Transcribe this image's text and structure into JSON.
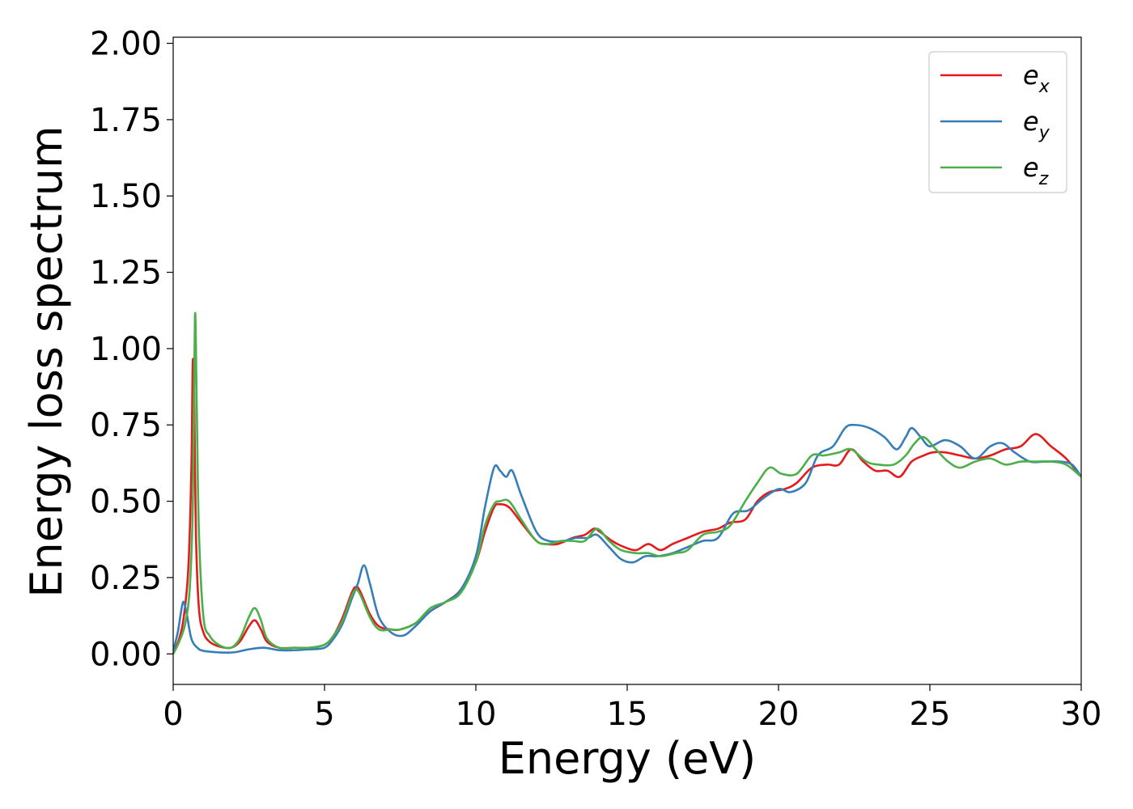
{
  "chart_data": {
    "type": "line",
    "title": "",
    "xlabel": "Energy (eV)",
    "ylabel": "Energy loss spectrum",
    "xlim": [
      0,
      30
    ],
    "ylim": [
      -0.1,
      2.02
    ],
    "xticks": [
      0,
      5,
      10,
      15,
      20,
      25,
      30
    ],
    "xtick_labels": [
      "0",
      "5",
      "10",
      "15",
      "20",
      "25",
      "30"
    ],
    "yticks": [
      0,
      0.25,
      0.5,
      0.75,
      1.0,
      1.25,
      1.5,
      1.75,
      2.0
    ],
    "ytick_labels": [
      "0.00",
      "0.25",
      "0.50",
      "0.75",
      "1.00",
      "1.25",
      "1.50",
      "1.75",
      "2.00"
    ],
    "grid": false,
    "legend_position": "top-right",
    "series": [
      {
        "name": "e_x",
        "label_base": "e",
        "label_sub": "x",
        "color": "#e41a1c",
        "points": [
          [
            0,
            0.0
          ],
          [
            0.2,
            0.05
          ],
          [
            0.35,
            0.12
          ],
          [
            0.5,
            0.28
          ],
          [
            0.6,
            0.6
          ],
          [
            0.65,
            0.96
          ],
          [
            0.7,
            0.8
          ],
          [
            0.75,
            0.4
          ],
          [
            0.85,
            0.15
          ],
          [
            1.0,
            0.07
          ],
          [
            1.2,
            0.04
          ],
          [
            1.5,
            0.025
          ],
          [
            1.9,
            0.02
          ],
          [
            2.2,
            0.04
          ],
          [
            2.5,
            0.09
          ],
          [
            2.7,
            0.11
          ],
          [
            2.9,
            0.08
          ],
          [
            3.1,
            0.04
          ],
          [
            3.5,
            0.02
          ],
          [
            4.0,
            0.02
          ],
          [
            4.5,
            0.02
          ],
          [
            5.0,
            0.03
          ],
          [
            5.3,
            0.06
          ],
          [
            5.6,
            0.12
          ],
          [
            5.9,
            0.2
          ],
          [
            6.05,
            0.22
          ],
          [
            6.2,
            0.2
          ],
          [
            6.5,
            0.13
          ],
          [
            6.8,
            0.09
          ],
          [
            7.2,
            0.08
          ],
          [
            7.5,
            0.08
          ],
          [
            8.0,
            0.1
          ],
          [
            8.5,
            0.14
          ],
          [
            9.0,
            0.17
          ],
          [
            9.5,
            0.21
          ],
          [
            10.0,
            0.3
          ],
          [
            10.3,
            0.4
          ],
          [
            10.6,
            0.48
          ],
          [
            10.8,
            0.49
          ],
          [
            11.1,
            0.48
          ],
          [
            11.5,
            0.43
          ],
          [
            12.0,
            0.37
          ],
          [
            12.3,
            0.36
          ],
          [
            12.7,
            0.36
          ],
          [
            13.2,
            0.38
          ],
          [
            13.6,
            0.39
          ],
          [
            13.9,
            0.41
          ],
          [
            14.1,
            0.4
          ],
          [
            14.5,
            0.37
          ],
          [
            14.9,
            0.35
          ],
          [
            15.3,
            0.34
          ],
          [
            15.7,
            0.36
          ],
          [
            16.1,
            0.34
          ],
          [
            16.5,
            0.36
          ],
          [
            17.0,
            0.38
          ],
          [
            17.5,
            0.4
          ],
          [
            18.0,
            0.41
          ],
          [
            18.4,
            0.43
          ],
          [
            18.9,
            0.44
          ],
          [
            19.3,
            0.5
          ],
          [
            19.7,
            0.53
          ],
          [
            20.2,
            0.54
          ],
          [
            20.6,
            0.56
          ],
          [
            21.1,
            0.61
          ],
          [
            21.6,
            0.62
          ],
          [
            22.0,
            0.62
          ],
          [
            22.4,
            0.67
          ],
          [
            22.8,
            0.63
          ],
          [
            23.2,
            0.6
          ],
          [
            23.6,
            0.6
          ],
          [
            24.0,
            0.58
          ],
          [
            24.4,
            0.63
          ],
          [
            24.8,
            0.65
          ],
          [
            25.1,
            0.66
          ],
          [
            25.5,
            0.66
          ],
          [
            26.0,
            0.65
          ],
          [
            26.5,
            0.64
          ],
          [
            27.0,
            0.65
          ],
          [
            27.5,
            0.67
          ],
          [
            28.0,
            0.68
          ],
          [
            28.5,
            0.72
          ],
          [
            29.0,
            0.68
          ],
          [
            29.5,
            0.64
          ],
          [
            30.0,
            0.58
          ]
        ]
      },
      {
        "name": "e_y",
        "label_base": "e",
        "label_sub": "y",
        "color": "#377eb8",
        "points": [
          [
            0,
            0.01
          ],
          [
            0.15,
            0.07
          ],
          [
            0.28,
            0.15
          ],
          [
            0.35,
            0.17
          ],
          [
            0.45,
            0.13
          ],
          [
            0.6,
            0.05
          ],
          [
            0.8,
            0.02
          ],
          [
            1.0,
            0.01
          ],
          [
            1.5,
            0.005
          ],
          [
            2.0,
            0.005
          ],
          [
            2.5,
            0.015
          ],
          [
            3.0,
            0.02
          ],
          [
            3.5,
            0.012
          ],
          [
            4.0,
            0.012
          ],
          [
            4.5,
            0.015
          ],
          [
            5.0,
            0.02
          ],
          [
            5.3,
            0.05
          ],
          [
            5.6,
            0.1
          ],
          [
            5.9,
            0.18
          ],
          [
            6.1,
            0.23
          ],
          [
            6.3,
            0.29
          ],
          [
            6.5,
            0.23
          ],
          [
            6.8,
            0.12
          ],
          [
            7.2,
            0.07
          ],
          [
            7.6,
            0.06
          ],
          [
            8.0,
            0.09
          ],
          [
            8.5,
            0.14
          ],
          [
            9.0,
            0.17
          ],
          [
            9.5,
            0.21
          ],
          [
            10.0,
            0.32
          ],
          [
            10.3,
            0.48
          ],
          [
            10.6,
            0.61
          ],
          [
            10.8,
            0.6
          ],
          [
            11.0,
            0.58
          ],
          [
            11.2,
            0.6
          ],
          [
            11.5,
            0.52
          ],
          [
            12.0,
            0.4
          ],
          [
            12.4,
            0.37
          ],
          [
            12.9,
            0.37
          ],
          [
            13.3,
            0.38
          ],
          [
            13.7,
            0.38
          ],
          [
            14.0,
            0.39
          ],
          [
            14.4,
            0.35
          ],
          [
            14.8,
            0.31
          ],
          [
            15.2,
            0.3
          ],
          [
            15.6,
            0.32
          ],
          [
            16.0,
            0.32
          ],
          [
            16.5,
            0.33
          ],
          [
            17.0,
            0.35
          ],
          [
            17.5,
            0.37
          ],
          [
            18.0,
            0.38
          ],
          [
            18.5,
            0.46
          ],
          [
            19.0,
            0.47
          ],
          [
            19.5,
            0.51
          ],
          [
            20.0,
            0.54
          ],
          [
            20.4,
            0.53
          ],
          [
            20.9,
            0.56
          ],
          [
            21.3,
            0.65
          ],
          [
            21.8,
            0.68
          ],
          [
            22.2,
            0.74
          ],
          [
            22.5,
            0.75
          ],
          [
            23.0,
            0.74
          ],
          [
            23.5,
            0.71
          ],
          [
            23.9,
            0.67
          ],
          [
            24.2,
            0.71
          ],
          [
            24.4,
            0.74
          ],
          [
            24.7,
            0.71
          ],
          [
            25.0,
            0.68
          ],
          [
            25.5,
            0.7
          ],
          [
            26.0,
            0.68
          ],
          [
            26.5,
            0.64
          ],
          [
            27.0,
            0.68
          ],
          [
            27.4,
            0.69
          ],
          [
            27.8,
            0.66
          ],
          [
            28.3,
            0.63
          ],
          [
            28.8,
            0.63
          ],
          [
            29.3,
            0.63
          ],
          [
            29.7,
            0.62
          ],
          [
            30.0,
            0.58
          ]
        ]
      },
      {
        "name": "e_z",
        "label_base": "e",
        "label_sub": "z",
        "color": "#4daf4a",
        "points": [
          [
            0,
            0.0
          ],
          [
            0.2,
            0.04
          ],
          [
            0.4,
            0.1
          ],
          [
            0.55,
            0.22
          ],
          [
            0.65,
            0.5
          ],
          [
            0.72,
            1.11
          ],
          [
            0.78,
            0.8
          ],
          [
            0.85,
            0.4
          ],
          [
            1.0,
            0.12
          ],
          [
            1.2,
            0.06
          ],
          [
            1.5,
            0.03
          ],
          [
            1.9,
            0.02
          ],
          [
            2.2,
            0.05
          ],
          [
            2.5,
            0.12
          ],
          [
            2.7,
            0.15
          ],
          [
            2.9,
            0.11
          ],
          [
            3.1,
            0.05
          ],
          [
            3.5,
            0.02
          ],
          [
            4.0,
            0.02
          ],
          [
            4.5,
            0.02
          ],
          [
            5.0,
            0.03
          ],
          [
            5.3,
            0.06
          ],
          [
            5.6,
            0.11
          ],
          [
            5.9,
            0.19
          ],
          [
            6.05,
            0.21
          ],
          [
            6.2,
            0.19
          ],
          [
            6.5,
            0.12
          ],
          [
            6.8,
            0.08
          ],
          [
            7.2,
            0.08
          ],
          [
            7.5,
            0.08
          ],
          [
            8.0,
            0.1
          ],
          [
            8.5,
            0.15
          ],
          [
            9.0,
            0.17
          ],
          [
            9.5,
            0.2
          ],
          [
            10.0,
            0.3
          ],
          [
            10.3,
            0.42
          ],
          [
            10.6,
            0.49
          ],
          [
            10.8,
            0.5
          ],
          [
            11.1,
            0.5
          ],
          [
            11.5,
            0.44
          ],
          [
            12.0,
            0.37
          ],
          [
            12.4,
            0.36
          ],
          [
            12.8,
            0.37
          ],
          [
            13.2,
            0.37
          ],
          [
            13.6,
            0.37
          ],
          [
            14.0,
            0.41
          ],
          [
            14.4,
            0.37
          ],
          [
            14.8,
            0.34
          ],
          [
            15.3,
            0.33
          ],
          [
            15.7,
            0.33
          ],
          [
            16.1,
            0.32
          ],
          [
            16.6,
            0.33
          ],
          [
            17.0,
            0.34
          ],
          [
            17.5,
            0.39
          ],
          [
            18.0,
            0.4
          ],
          [
            18.4,
            0.42
          ],
          [
            18.9,
            0.5
          ],
          [
            19.3,
            0.56
          ],
          [
            19.7,
            0.61
          ],
          [
            20.1,
            0.59
          ],
          [
            20.6,
            0.59
          ],
          [
            21.1,
            0.65
          ],
          [
            21.5,
            0.65
          ],
          [
            22.0,
            0.66
          ],
          [
            22.4,
            0.67
          ],
          [
            22.9,
            0.63
          ],
          [
            23.3,
            0.62
          ],
          [
            23.8,
            0.62
          ],
          [
            24.2,
            0.65
          ],
          [
            24.5,
            0.69
          ],
          [
            24.8,
            0.71
          ],
          [
            25.2,
            0.67
          ],
          [
            25.6,
            0.63
          ],
          [
            26.0,
            0.61
          ],
          [
            26.5,
            0.63
          ],
          [
            27.0,
            0.64
          ],
          [
            27.5,
            0.62
          ],
          [
            28.0,
            0.63
          ],
          [
            28.5,
            0.63
          ],
          [
            29.0,
            0.63
          ],
          [
            29.5,
            0.62
          ],
          [
            30.0,
            0.58
          ]
        ]
      }
    ]
  }
}
